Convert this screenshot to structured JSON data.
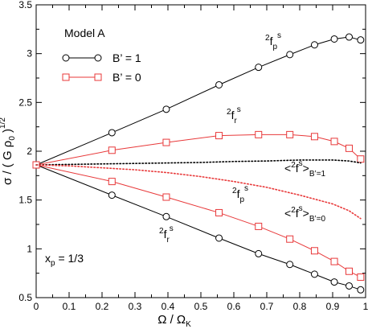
{
  "chart_data": {
    "type": "line",
    "xlabel": "Ω / Ω",
    "xlabel_sub": "K",
    "ylabel": "σ / ( G ρ",
    "ylabel_sub": "0",
    "ylabel_close": " )",
    "ylabel_sup": "1/2",
    "xlim": [
      0,
      1
    ],
    "ylim": [
      0.5,
      3.5
    ],
    "xticks": [
      "0",
      "0.1",
      "0.2",
      "0.3",
      "0.4",
      "0.5",
      "0.6",
      "0.7",
      "0.8",
      "0.9",
      "1"
    ],
    "yticks": [
      "0.5",
      "1",
      "1.5",
      "2",
      "2.5",
      "3",
      "3.5"
    ],
    "grid": false,
    "legend": {
      "title": "Model A",
      "placement": "top-left",
      "entries": [
        {
          "label": "B’ = 1",
          "color": "#000000",
          "marker": "circle"
        },
        {
          "label": "B’ = 0",
          "color": "#e8393a",
          "marker": "square"
        }
      ]
    },
    "series": [
      {
        "name": "B’ = 1",
        "color": "#000000",
        "marker": "circle",
        "style": "solid",
        "x": [
          0,
          0.23,
          0.395,
          0.555,
          0.675,
          0.77,
          0.845,
          0.905,
          0.95,
          0.985
        ],
        "y": [
          1.86,
          2.19,
          2.43,
          2.68,
          2.86,
          2.99,
          3.09,
          3.15,
          3.17,
          3.14
        ]
      },
      {
        "name": "B’ = 1",
        "color": "#000000",
        "marker": "circle",
        "style": "solid",
        "x": [
          0,
          0.23,
          0.395,
          0.555,
          0.675,
          0.77,
          0.845,
          0.905,
          0.95,
          0.985
        ],
        "y": [
          1.86,
          1.55,
          1.33,
          1.11,
          0.95,
          0.84,
          0.74,
          0.66,
          0.62,
          0.58
        ]
      },
      {
        "name": "B’ = 0",
        "color": "#e8393a",
        "marker": "square",
        "style": "solid",
        "x": [
          0,
          0.23,
          0.395,
          0.555,
          0.675,
          0.77,
          0.845,
          0.905,
          0.95,
          0.985
        ],
        "y": [
          1.86,
          2.01,
          2.09,
          2.16,
          2.17,
          2.17,
          2.15,
          2.1,
          2.03,
          1.92
        ]
      },
      {
        "name": "B’ = 0",
        "color": "#e8393a",
        "marker": "square",
        "style": "solid",
        "x": [
          0,
          0.23,
          0.395,
          0.555,
          0.675,
          0.77,
          0.845,
          0.905,
          0.95,
          0.985
        ],
        "y": [
          1.86,
          1.69,
          1.53,
          1.37,
          1.23,
          1.1,
          0.98,
          0.87,
          0.77,
          0.71
        ]
      },
      {
        "name": "<²fˢ>B’=1",
        "color": "#000000",
        "marker": "none",
        "style": "dotted",
        "x": [
          0,
          0.1,
          0.2,
          0.3,
          0.4,
          0.5,
          0.6,
          0.7,
          0.8,
          0.9,
          0.95,
          0.985
        ],
        "y": [
          1.86,
          1.865,
          1.87,
          1.875,
          1.88,
          1.885,
          1.895,
          1.9,
          1.91,
          1.91,
          1.9,
          1.88
        ]
      },
      {
        "name": "<²fˢ>B’=0",
        "color": "#e8393a",
        "marker": "none",
        "style": "dotted",
        "x": [
          0,
          0.1,
          0.2,
          0.3,
          0.4,
          0.5,
          0.6,
          0.7,
          0.8,
          0.9,
          0.95,
          0.985
        ],
        "y": [
          1.86,
          1.85,
          1.83,
          1.81,
          1.78,
          1.74,
          1.69,
          1.63,
          1.55,
          1.46,
          1.39,
          1.31
        ]
      }
    ],
    "annotations": [
      {
        "id": "fp_top",
        "sup": "2",
        "main": "f",
        "sub": "p",
        "supr": "s"
      },
      {
        "id": "fr_top",
        "sup": "2",
        "main": "f",
        "sub": "r",
        "supr": "s"
      },
      {
        "id": "fp_bot",
        "sup": "2",
        "main": "f",
        "sub": "p",
        "supr": "s"
      },
      {
        "id": "fr_bot",
        "sup": "2",
        "main": "f",
        "sub": "r",
        "supr": "s"
      },
      {
        "id": "avg_b1",
        "sup": "2",
        "main": "f",
        "supr": "s",
        "subscript": "B’=1"
      },
      {
        "id": "avg_b0",
        "sup": "2",
        "main": "f",
        "supr": "s",
        "subscript": "B’=0"
      },
      {
        "id": "xp",
        "text": "x",
        "sub": "p",
        "rest": " = 1/3"
      }
    ]
  }
}
